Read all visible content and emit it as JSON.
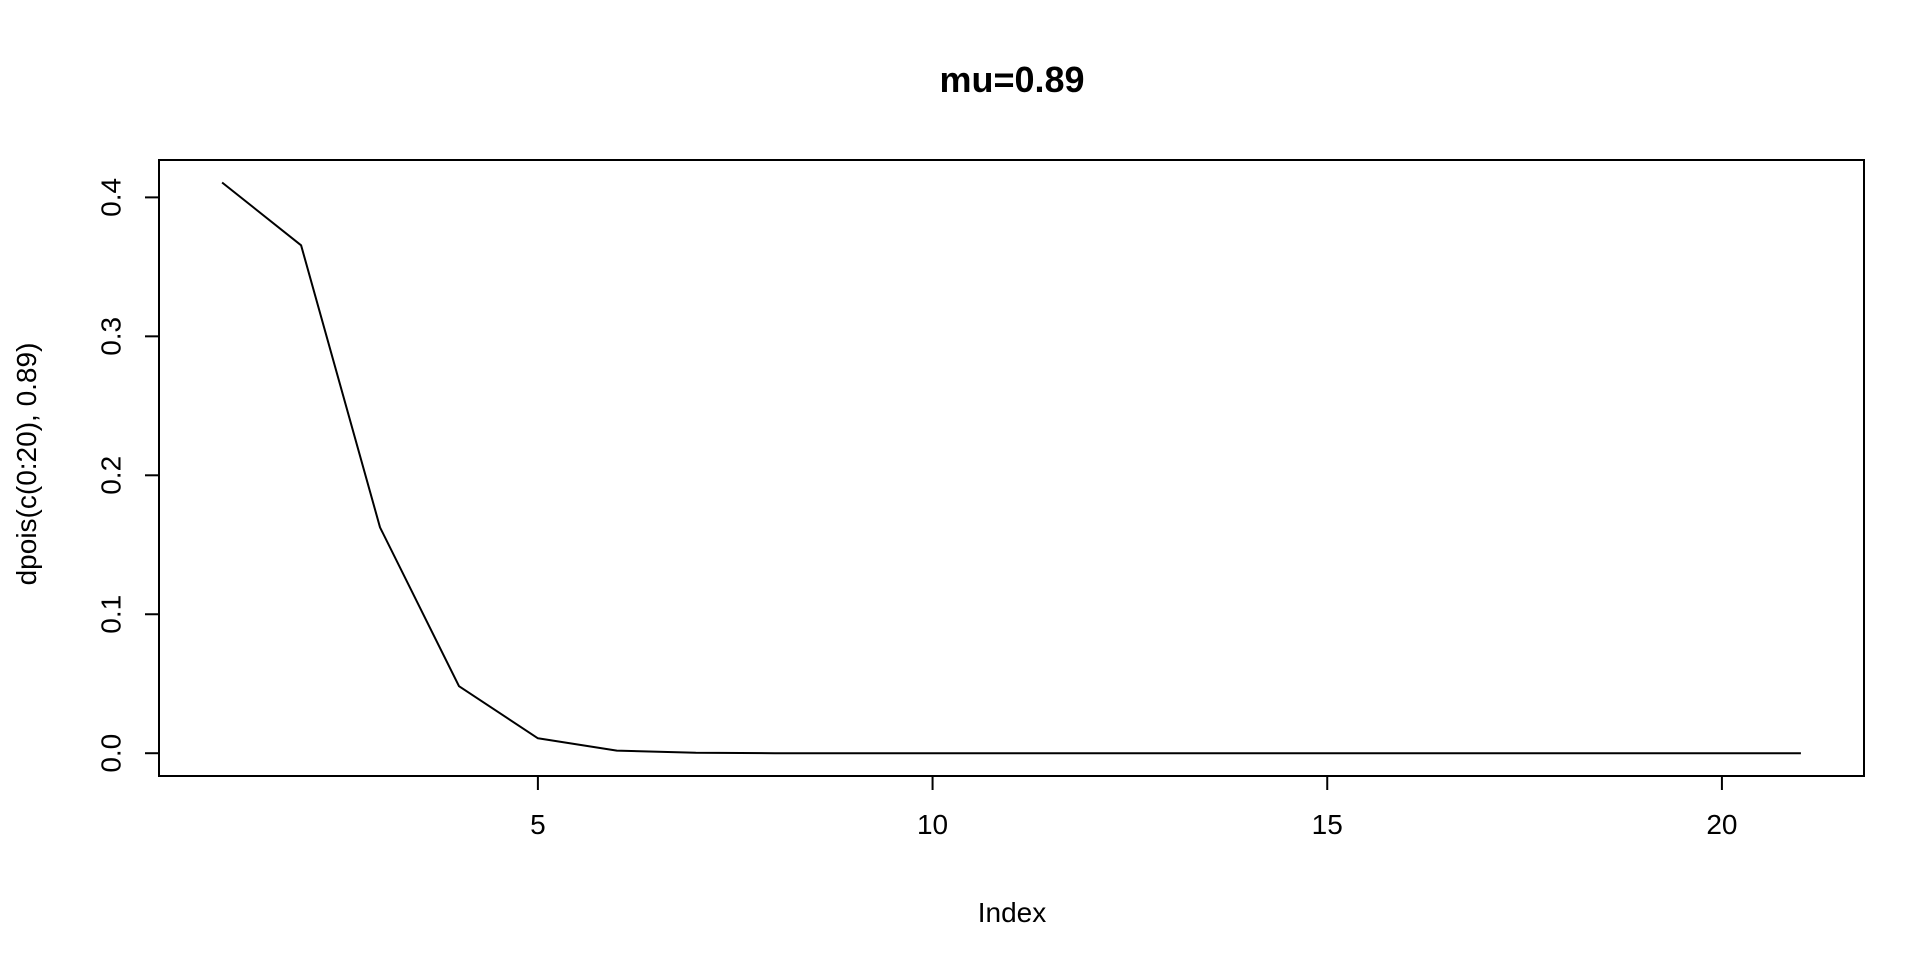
{
  "chart_data": {
    "type": "line",
    "title": "mu=0.89",
    "xlabel": "Index",
    "ylabel": "dpois(c(0:20), 0.89)",
    "xlim": [
      0.2,
      21.8
    ],
    "ylim": [
      -0.0164,
      0.4269
    ],
    "x_ticks": [
      5,
      10,
      15,
      20
    ],
    "x_tick_labels": [
      "5",
      "10",
      "15",
      "20"
    ],
    "y_ticks": [
      0.0,
      0.1,
      0.2,
      0.3,
      0.4
    ],
    "y_tick_labels": [
      "0.0",
      "0.1",
      "0.2",
      "0.3",
      "0.4"
    ],
    "grid": false,
    "series": [
      {
        "color": "#000000",
        "x": [
          1,
          2,
          3,
          4,
          5,
          6,
          7,
          8,
          9,
          10,
          11,
          12,
          13,
          14,
          15,
          16,
          17,
          18,
          19,
          20,
          21
        ],
        "values": [
          0.4107,
          0.3655,
          0.1626,
          0.0482,
          0.0107,
          0.0019,
          0.0003,
          4e-05,
          4e-06,
          4e-07,
          4e-08,
          0.0,
          0.0,
          0.0,
          0.0,
          0.0,
          0.0,
          0.0,
          0.0,
          0.0,
          0.0
        ]
      }
    ]
  }
}
